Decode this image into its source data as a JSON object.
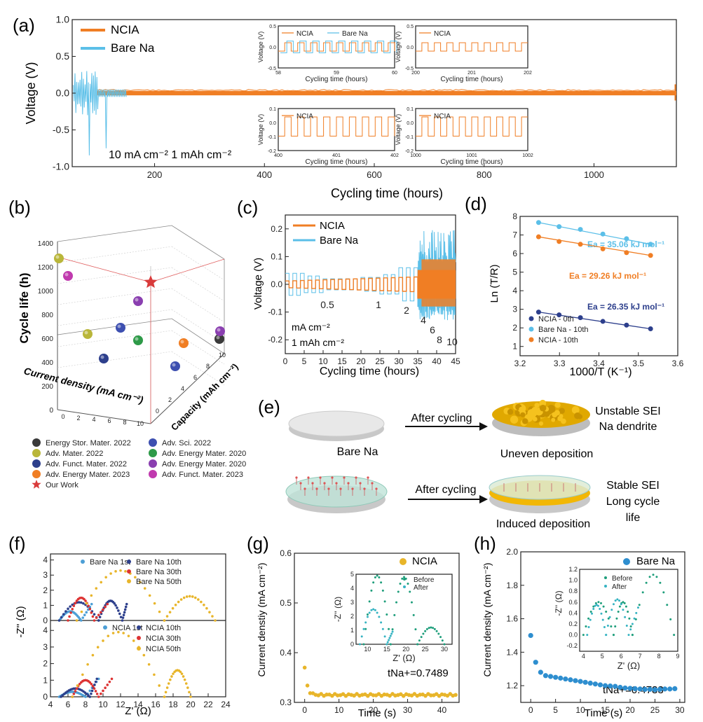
{
  "colors": {
    "ncia": "#F07E24",
    "bare": "#5BBFE8",
    "dark_blue": "#2D3F8C",
    "green_eis": "#1E9E7B",
    "teal_eis": "#35B3C2",
    "red": "#E03A3A",
    "gold": "#E8B52A",
    "axis": "#222222",
    "grid": "#BBBBBB"
  },
  "panel_labels": {
    "a": "(a)",
    "b": "(b)",
    "c": "(c)",
    "d": "(d)",
    "e": "(e)",
    "f": "(f)",
    "g": "(g)",
    "h": "(h)"
  },
  "chart_data": [
    {
      "id": "a",
      "type": "line",
      "xlabel": "Cycling time (hours)",
      "ylabel": "Voltage (V)",
      "xlim": [
        50,
        1150
      ],
      "ylim": [
        -1.0,
        1.0
      ],
      "xticks": [
        200,
        400,
        600,
        800,
        1000
      ],
      "yticks": [
        -1.0,
        -0.5,
        0.0,
        0.5,
        1.0
      ],
      "ytick_labels": [
        "-1.0",
        "-0.5",
        "0.0",
        "0.5",
        "1.0"
      ],
      "series": [
        {
          "name": "NCIA",
          "x_range": [
            95,
            1150
          ],
          "amplitude": 0.03
        },
        {
          "name": "Bare Na",
          "x_range": [
            50,
            150
          ],
          "amplitude": 0.3
        }
      ],
      "annotation": "10 mA cm⁻²  1 mAh cm⁻²",
      "insets": [
        {
          "legend": [
            "NCIA",
            "Bare Na"
          ],
          "xticks": [
            "58",
            "59",
            "60"
          ],
          "yticks": [
            "-0.5",
            "0.0",
            "0.5"
          ],
          "xlabel": "Cycling time (hours)",
          "ylabel": "Voltage (V)"
        },
        {
          "legend": [
            "NCIA"
          ],
          "xticks": [
            "200",
            "201",
            "202"
          ],
          "yticks": [
            "-0.5",
            "0.0",
            "0.5"
          ],
          "xlabel": "Cycling time (hours)",
          "ylabel": "Voltage (V)"
        },
        {
          "legend": [
            "NCIA"
          ],
          "xticks": [
            "400",
            "401",
            "402"
          ],
          "yticks": [
            "-0.2",
            "-0.1",
            "0.0",
            "0.1"
          ],
          "xlabel": "Cycling time (hours)",
          "ylabel": "Voltage (V)"
        },
        {
          "legend": [
            "NCIA"
          ],
          "xticks": [
            "1000",
            "1001",
            "1002"
          ],
          "yticks": [
            "-0.2",
            "-0.1",
            "0.0",
            "0.1"
          ],
          "xlabel": "Cycling time (hours)",
          "ylabel": "Voltage (V)"
        }
      ]
    },
    {
      "id": "b",
      "type": "scatter",
      "xlabel": "Current density (mA cm⁻²)",
      "ylabel": "Cycle life (h)",
      "zlabel": "Capacity (mAh cm⁻²)",
      "cycle_ticks": [
        "0",
        "200",
        "400",
        "600",
        "800",
        "1000",
        "1200",
        "1400"
      ],
      "cd_ticks": [
        "0",
        "2",
        "4",
        "6",
        "8",
        "10"
      ],
      "cap_ticks": [
        "0",
        "2",
        "4",
        "6",
        "8",
        "10"
      ],
      "points": [
        {
          "label": "Energy Stor. Mater. 2022",
          "color": "#3A3A3A",
          "cd": 1,
          "cap": 1,
          "life": 400
        },
        {
          "label": "Adv. Mater. 2022",
          "color": "#B9B63A",
          "cd": 1,
          "cap": 1,
          "life": 1300
        },
        {
          "label": "Adv. Mater. 2022",
          "color": "#B9B63A",
          "cd": 2,
          "cap": 2,
          "life": 500
        },
        {
          "label": "Adv. Funct. Mater. 2022",
          "color": "#2D3F8C",
          "cd": 3,
          "cap": 3,
          "life": 300
        },
        {
          "label": "Adv. Energy Mater. 2023",
          "color": "#F07E24",
          "cd": 6,
          "cap": 6,
          "life": 500
        },
        {
          "label": "Adv. Sci. 2022",
          "color": "#3D4FB0",
          "cd": 3,
          "cap": 1,
          "life": 600
        },
        {
          "label": "Adv. Sci. 2022",
          "color": "#3D4FB0",
          "cd": 5,
          "cap": 5,
          "life": 200
        },
        {
          "label": "Adv. Energy Mater. 2020",
          "color": "#2E9A48",
          "cd": 4,
          "cap": 4,
          "life": 500
        },
        {
          "label": "Adv. Energy Mater. 2020",
          "color": "#8A3FB0",
          "cd": 8,
          "cap": 8,
          "life": 600
        },
        {
          "label": "Adv. Energy Mater. 2020",
          "color": "#8A3FB0",
          "cd": 2,
          "cap": 1,
          "life": 900
        },
        {
          "label": "Adv. Funct. Mater. 2023",
          "color": "#C03AAE",
          "cd": 1,
          "cap": 1,
          "life": 1100
        },
        {
          "label": "Our Work",
          "color": "#D93B3B",
          "cd": 10,
          "cap": 10,
          "life": 1150
        }
      ],
      "legend": [
        {
          "label": "Energy Stor. Mater. 2022",
          "color": "#3A3A3A",
          "marker": "ball"
        },
        {
          "label": "Adv. Sci. 2022",
          "color": "#3D4FB0",
          "marker": "ball"
        },
        {
          "label": "Adv. Mater. 2022",
          "color": "#B9B63A",
          "marker": "ball"
        },
        {
          "label": "Adv. Energy Mater. 2020",
          "color": "#2E9A48",
          "marker": "ball"
        },
        {
          "label": "Adv. Funct. Mater. 2022",
          "color": "#2D3F8C",
          "marker": "ball"
        },
        {
          "label": "Adv. Energy Mater. 2020",
          "color": "#8A3FB0",
          "marker": "ball"
        },
        {
          "label": "Adv. Energy Mater. 2023",
          "color": "#F07E24",
          "marker": "ball"
        },
        {
          "label": "Adv. Funct. Mater. 2023",
          "color": "#C03AAE",
          "marker": "ball"
        },
        {
          "label": "Our Work",
          "color": "#D93B3B",
          "marker": "star"
        }
      ]
    },
    {
      "id": "c",
      "type": "line",
      "xlabel": "Cycling time (hours)",
      "ylabel": "Voltage (V)",
      "xlim": [
        0,
        45
      ],
      "ylim": [
        -0.25,
        0.25
      ],
      "xticks": [
        "0",
        "5",
        "10",
        "15",
        "20",
        "25",
        "30",
        "35",
        "40",
        "45"
      ],
      "yticks": [
        "-0.2",
        "-0.1",
        "0.0",
        "0.1",
        "0.2"
      ],
      "legend": [
        "NCIA",
        "Bare Na"
      ],
      "rate_labels": [
        "0.5",
        "1",
        "2",
        "4",
        "6",
        "8",
        "10"
      ],
      "annotation_lines": [
        "mA cm⁻²",
        "1 mAh cm⁻²"
      ]
    },
    {
      "id": "d",
      "type": "scatter",
      "xlabel": "1000/T (K⁻¹)",
      "ylabel": "Ln (T/R)",
      "xlim": [
        3.2,
        3.6
      ],
      "ylim": [
        0.5,
        8
      ],
      "xticks": [
        "3.2",
        "3.3",
        "3.4",
        "3.5",
        "3.6"
      ],
      "yticks": [
        "1",
        "2",
        "3",
        "4",
        "5",
        "6",
        "7",
        "8"
      ],
      "x": [
        3.247,
        3.299,
        3.353,
        3.41,
        3.47,
        3.531
      ],
      "series": [
        {
          "name": "Bare Na - 10th",
          "color": "#5BBFE8",
          "values": [
            7.67,
            7.45,
            7.3,
            7.05,
            6.8,
            6.5
          ]
        },
        {
          "name": "NCIA  - 10th",
          "color": "#F07E24",
          "values": [
            6.9,
            6.65,
            6.5,
            6.25,
            6.05,
            5.9
          ]
        },
        {
          "name": "NCIA - 0th",
          "color": "#2D3F8C",
          "values": [
            2.85,
            2.7,
            2.55,
            2.35,
            2.15,
            1.95
          ]
        }
      ],
      "ea_labels": [
        "Ea = 35.06 kJ mol⁻¹",
        "Ea = 29.26 kJ mol⁻¹",
        "Ea = 26.35 kJ mol⁻¹"
      ],
      "legend": [
        "NCIA - 0th",
        "Bare Na - 10th",
        "NCIA  - 10th"
      ]
    },
    {
      "id": "f",
      "type": "scatter",
      "xlabel": "Z' (Ω)",
      "ylabel": "-Z'' (Ω)",
      "xlim": [
        4,
        24
      ],
      "xticks": [
        "4",
        "6",
        "8",
        "10",
        "12",
        "14",
        "16",
        "18",
        "20",
        "22",
        "24"
      ],
      "yticks": [
        "0",
        "1",
        "2",
        "3",
        "4"
      ],
      "top_legend": [
        "Bare Na 1st",
        "Bare Na 10th",
        "Bare Na 30th",
        "Bare Na 50th"
      ],
      "bottom_legend": [
        "NCIA 1st",
        "NCIA 10th",
        "NCIA 30th",
        "NCIA 50th"
      ]
    },
    {
      "id": "g",
      "type": "scatter",
      "xlabel": "Time (s)",
      "ylabel": "Current denstiy (mA cm⁻²)",
      "xlim": [
        -3,
        45
      ],
      "ylim": [
        0.3,
        0.6
      ],
      "xticks": [
        "0",
        "10",
        "20",
        "30",
        "40"
      ],
      "yticks": [
        "0.3",
        "0.4",
        "0.5",
        "0.6"
      ],
      "legend": "NCIA",
      "t_label": "tNa+=0.7489",
      "inset": {
        "legend": [
          "Before",
          "After"
        ],
        "xlabel": "Z' (Ω)",
        "ylabel": "-Z'' (Ω)",
        "xticks": [
          "10",
          "15",
          "20",
          "25",
          "30"
        ],
        "yticks": [
          "0",
          "1",
          "2",
          "3",
          "4",
          "5"
        ]
      }
    },
    {
      "id": "h",
      "type": "scatter",
      "xlabel": "Time (s)",
      "ylabel": "Current density (mA cm⁻²)",
      "xlim": [
        -2,
        31
      ],
      "ylim": [
        1.1,
        2.0
      ],
      "xticks": [
        "0",
        "5",
        "10",
        "15",
        "20",
        "25",
        "30"
      ],
      "yticks": [
        "1.2",
        "1.4",
        "1.6",
        "1.8",
        "2.0"
      ],
      "legend": "Bare Na",
      "t_label": "tNa+=0.4783",
      "inset": {
        "legend": [
          "Before",
          "After"
        ],
        "xlabel": "Z' (Ω)",
        "ylabel": "-Z'' (Ω)",
        "xticks": [
          "4",
          "5",
          "6",
          "7",
          "8",
          "9"
        ],
        "yticks": [
          "-0.2",
          "0.0",
          "0.2",
          "0.4",
          "0.6",
          "0.8",
          "1.0",
          "1.2"
        ]
      }
    }
  ],
  "schematic": {
    "top_left": "Bare Na",
    "top_arrow": "After cycling",
    "top_right_lines": [
      "Unstable SEI",
      "Na dendrite"
    ],
    "top_bottom": "Uneven deposition",
    "bottom_arrow": "After cycling",
    "bottom_right_lines": [
      "Stable SEI",
      "Long cycle",
      "life"
    ],
    "bottom_bottom": "Induced deposition"
  }
}
